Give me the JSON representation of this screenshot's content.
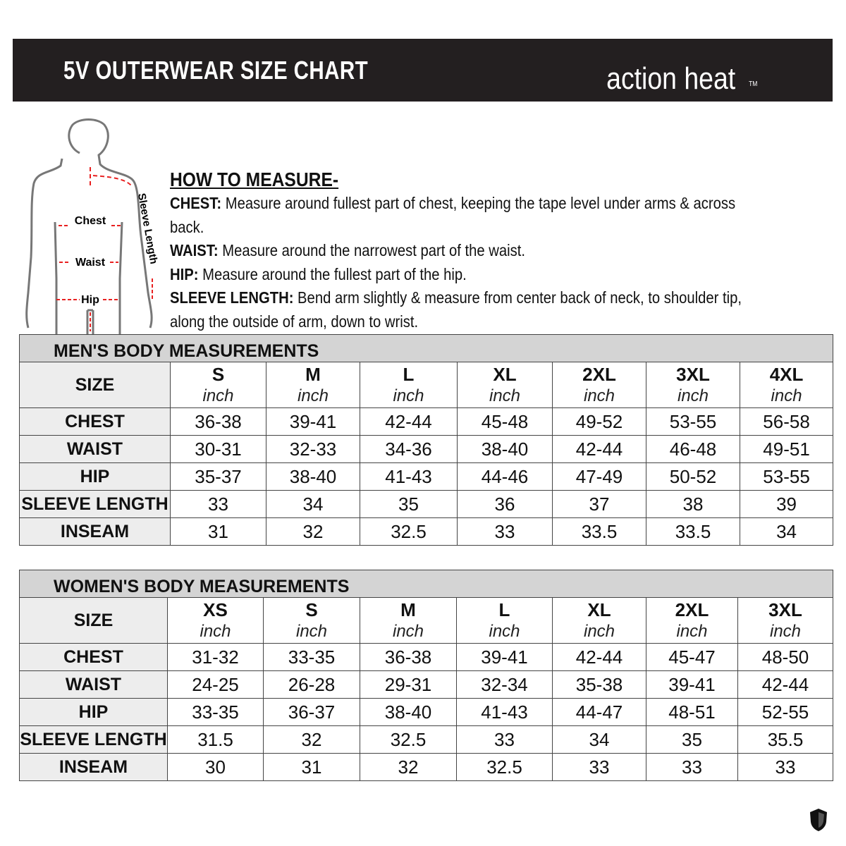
{
  "header": {
    "title": "5V OUTERWEAR SIZE CHART",
    "logo_text": "action heat",
    "logo_tm": "TM"
  },
  "figure": {
    "labels": [
      "Chest",
      "Waist",
      "Hip",
      "Sleeve Length"
    ]
  },
  "how_to": {
    "heading": "HOW TO MEASURE-",
    "items": [
      {
        "term": "CHEST:",
        "text": " Measure around fullest part of chest, keeping the tape level under arms & across back."
      },
      {
        "term": "WAIST:",
        "text": " Measure around the narrowest part of the waist."
      },
      {
        "term": "HIP:",
        "text": " Measure around the fullest part of the hip."
      },
      {
        "term": "SLEEVE LENGTH:",
        "text": " Bend arm slightly & measure from center back of neck, to shoulder tip, along the outside of arm, down to wrist."
      }
    ]
  },
  "mens": {
    "title": "MEN'S BODY MEASUREMENTS",
    "size_label": "SIZE",
    "unit": "inch",
    "sizes": [
      "S",
      "M",
      "L",
      "XL",
      "2XL",
      "3XL",
      "4XL"
    ],
    "rows": [
      {
        "label": "CHEST",
        "values": [
          "36-38",
          "39-41",
          "42-44",
          "45-48",
          "49-52",
          "53-55",
          "56-58"
        ]
      },
      {
        "label": "WAIST",
        "values": [
          "30-31",
          "32-33",
          "34-36",
          "38-40",
          "42-44",
          "46-48",
          "49-51"
        ]
      },
      {
        "label": "HIP",
        "values": [
          "35-37",
          "38-40",
          "41-43",
          "44-46",
          "47-49",
          "50-52",
          "53-55"
        ]
      },
      {
        "label": "SLEEVE LENGTH",
        "values": [
          "33",
          "34",
          "35",
          "36",
          "37",
          "38",
          "39"
        ]
      },
      {
        "label": "INSEAM",
        "values": [
          "31",
          "32",
          "32.5",
          "33",
          "33.5",
          "33.5",
          "34"
        ]
      }
    ]
  },
  "womens": {
    "title": "WOMEN'S BODY MEASUREMENTS",
    "size_label": "SIZE",
    "unit": "inch",
    "sizes": [
      "XS",
      "S",
      "M",
      "L",
      "XL",
      "2XL",
      "3XL"
    ],
    "rows": [
      {
        "label": "CHEST",
        "values": [
          "31-32",
          "33-35",
          "36-38",
          "39-41",
          "42-44",
          "45-47",
          "48-50"
        ]
      },
      {
        "label": "WAIST",
        "values": [
          "24-25",
          "26-28",
          "29-31",
          "32-34",
          "35-38",
          "39-41",
          "42-44"
        ]
      },
      {
        "label": "HIP",
        "values": [
          "33-35",
          "36-37",
          "38-40",
          "41-43",
          "44-47",
          "48-51",
          "52-55"
        ]
      },
      {
        "label": "SLEEVE LENGTH",
        "values": [
          "31.5",
          "32",
          "32.5",
          "33",
          "34",
          "35",
          "35.5"
        ]
      },
      {
        "label": "INSEAM",
        "values": [
          "30",
          "31",
          "32",
          "32.5",
          "33",
          "33",
          "33"
        ]
      }
    ]
  }
}
